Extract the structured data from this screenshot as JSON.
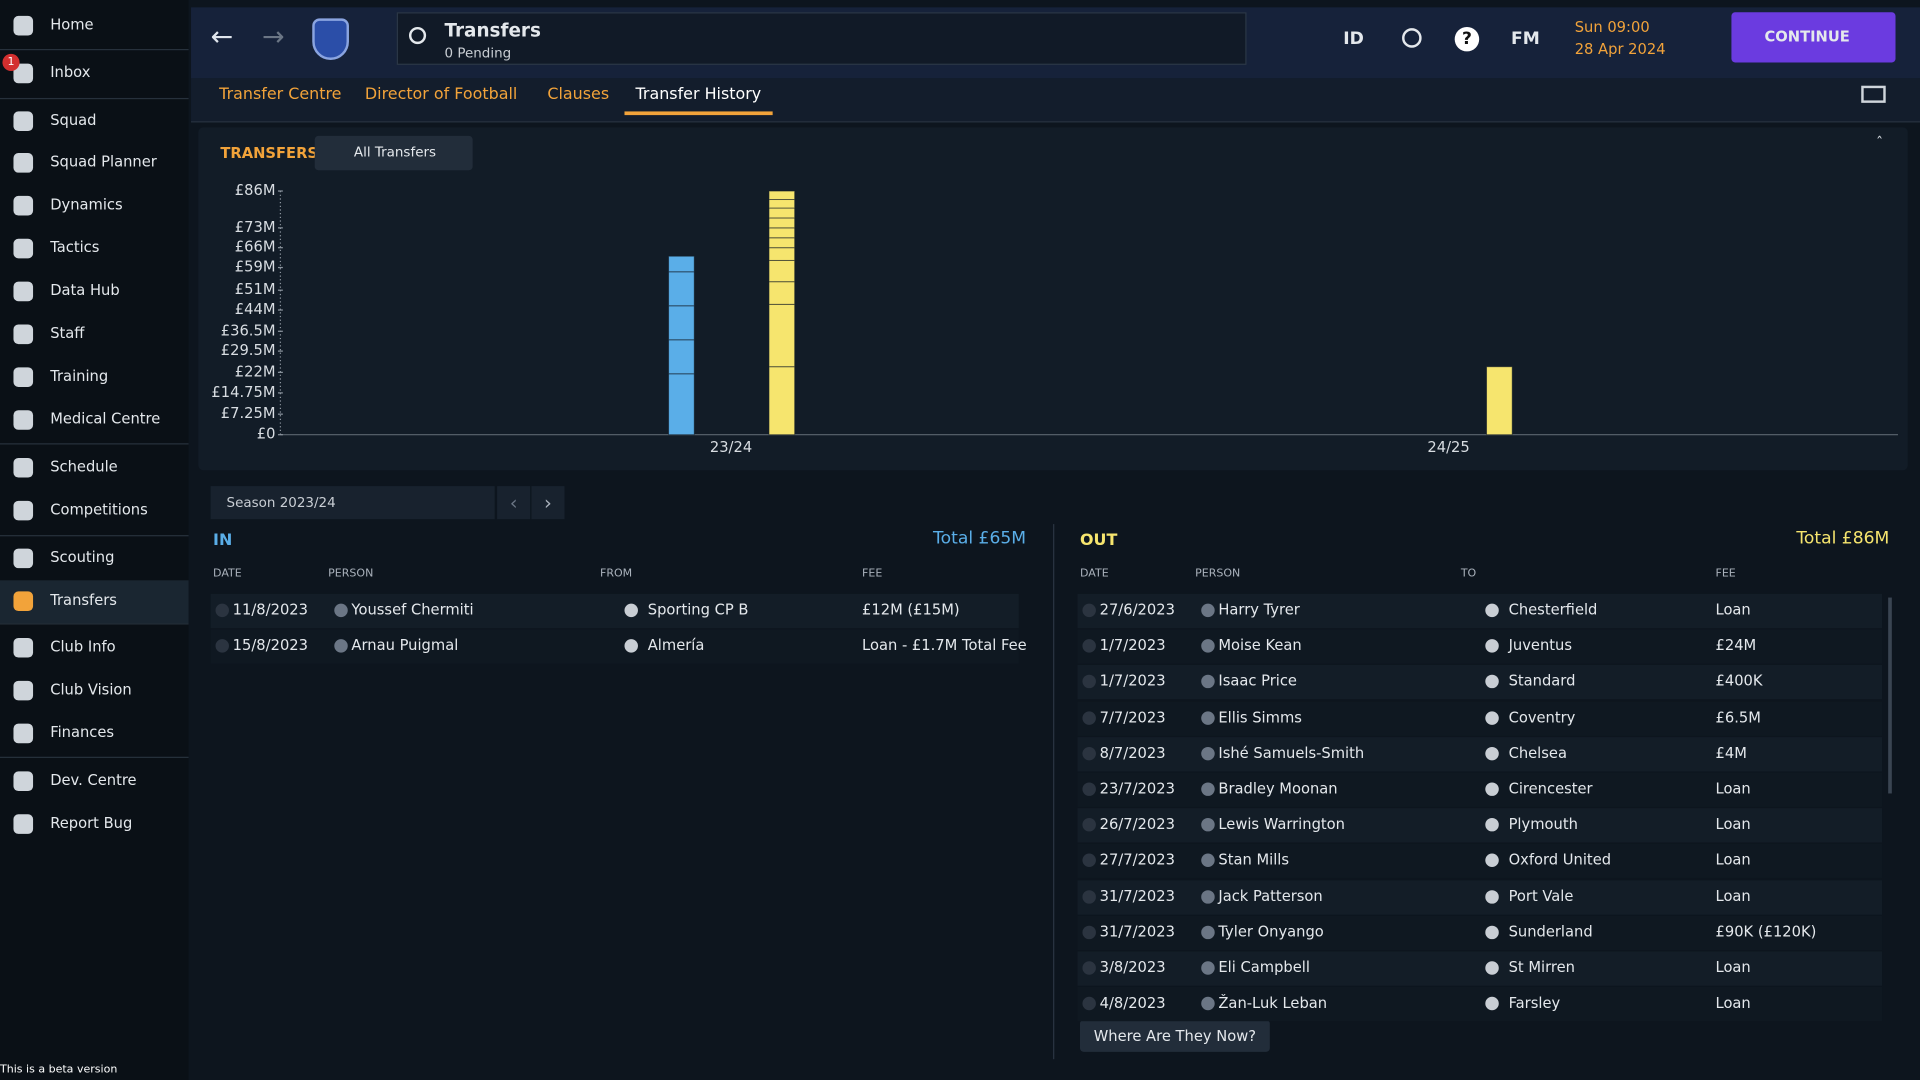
{
  "sidebar": [
    "Home",
    "Inbox",
    "Squad",
    "Squad Planner",
    "Dynamics",
    "Tactics",
    "Data Hub",
    "Staff",
    "Training",
    "Medical Centre",
    "Schedule",
    "Competitions",
    "Scouting",
    "Transfers",
    "Club Info",
    "Club Vision",
    "Finances",
    "Dev. Centre",
    "Report Bug"
  ],
  "inbox_badge": "1",
  "header": {
    "title": "Transfers",
    "subtitle": "0 Pending",
    "id": "ID",
    "fm": "FM",
    "time": "Sun 09:00",
    "date": "28 Apr 2024",
    "continue": "CONTINUE"
  },
  "tabs": [
    "Transfer Centre",
    "Director of Football",
    "Clauses",
    "Transfer History"
  ],
  "active_tab": 3,
  "chart_data": {
    "type": "bar",
    "stacked": true,
    "title": "TRANSFERS",
    "filter": "All Transfers",
    "categories": [
      "23/24",
      "24/25"
    ],
    "series": [
      {
        "color": "#5aaee8",
        "values": [
          [
            21.5,
            12,
            12,
            12,
            5.5
          ],
          []
        ]
      },
      {
        "color": "#f6e56e",
        "values": [
          [
            24,
            22,
            8,
            7.5,
            4.5,
            3.5,
            3.5,
            3.5,
            3.5,
            3,
            3
          ],
          [
            24
          ]
        ]
      }
    ],
    "ylim": [
      0,
      86
    ],
    "yticks": [
      {
        "value": 0,
        "label": "£0"
      },
      {
        "value": 7.25,
        "label": "£7.25M"
      },
      {
        "value": 14.75,
        "label": "£14.75M"
      },
      {
        "value": 22,
        "label": "£22M"
      },
      {
        "value": 29.5,
        "label": "£29.5M"
      },
      {
        "value": 36.5,
        "label": "£36.5M"
      },
      {
        "value": 44,
        "label": "£44M"
      },
      {
        "value": 51,
        "label": "£51M"
      },
      {
        "value": 59,
        "label": "£59M"
      },
      {
        "value": 66,
        "label": "£66M"
      },
      {
        "value": 73,
        "label": "£73M"
      },
      {
        "value": 86,
        "label": "£86M"
      }
    ]
  },
  "season": "Season 2023/24",
  "in": {
    "title": "IN",
    "total": "Total £65M",
    "columns": [
      "DATE",
      "PERSON",
      "FROM",
      "FEE"
    ],
    "rows": [
      [
        "11/8/2023",
        "Youssef Chermiti",
        "Sporting CP B",
        "£12M (£15M)"
      ],
      [
        "15/8/2023",
        "Arnau Puigmal",
        "Almería",
        "Loan - £1.7M Total Fee"
      ]
    ]
  },
  "out": {
    "title": "OUT",
    "total": "Total £86M",
    "columns": [
      "DATE",
      "PERSON",
      "TO",
      "FEE"
    ],
    "rows": [
      [
        "27/6/2023",
        "Harry Tyrer",
        "Chesterfield",
        "Loan"
      ],
      [
        "1/7/2023",
        "Moise Kean",
        "Juventus",
        "£24M"
      ],
      [
        "1/7/2023",
        "Isaac Price",
        "Standard",
        "£400K"
      ],
      [
        "7/7/2023",
        "Ellis Simms",
        "Coventry",
        "£6.5M"
      ],
      [
        "8/7/2023",
        "Ishé Samuels-Smith",
        "Chelsea",
        "£4M"
      ],
      [
        "23/7/2023",
        "Bradley Moonan",
        "Cirencester",
        "Loan"
      ],
      [
        "26/7/2023",
        "Lewis Warrington",
        "Plymouth",
        "Loan"
      ],
      [
        "27/7/2023",
        "Stan Mills",
        "Oxford United",
        "Loan"
      ],
      [
        "31/7/2023",
        "Jack Patterson",
        "Port Vale",
        "Loan"
      ],
      [
        "31/7/2023",
        "Tyler Onyango",
        "Sunderland",
        "£90K (£120K)"
      ],
      [
        "3/8/2023",
        "Eli Campbell",
        "St Mirren",
        "Loan"
      ],
      [
        "4/8/2023",
        "Žan-Luk Leban",
        "Farsley",
        "Loan"
      ]
    ]
  },
  "button": "Where Are They Now?",
  "footer": "This is a beta version"
}
